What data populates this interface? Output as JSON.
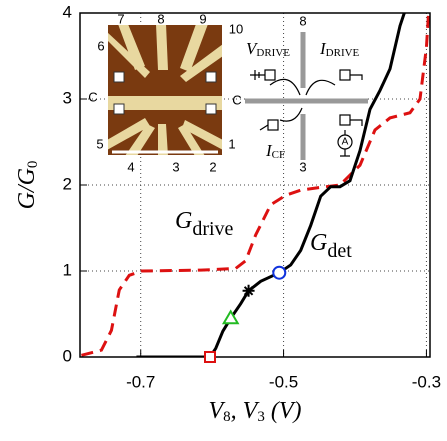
{
  "chart_data": {
    "type": "line",
    "ylabel": [
      "G/G",
      "0"
    ],
    "xlabel": [
      "V",
      "8",
      ", V",
      "3",
      " (V)"
    ],
    "xlim": [
      -0.785,
      -0.295
    ],
    "ylim": [
      0,
      4
    ],
    "xticks": [
      -0.7,
      -0.5,
      -0.3
    ],
    "yticks": [
      0,
      1,
      2,
      3,
      4
    ],
    "grid": true,
    "series": [
      {
        "name": [
          "G",
          "drive"
        ],
        "color": "#dd1111",
        "dash": true,
        "x": [
          -0.783,
          -0.755,
          -0.741,
          -0.73,
          -0.716,
          -0.699,
          -0.616,
          -0.567,
          -0.553,
          -0.539,
          -0.518,
          -0.497,
          -0.476,
          -0.451,
          -0.421,
          -0.393,
          -0.372,
          -0.351,
          -0.323,
          -0.309,
          -0.3,
          -0.297
        ],
        "values": [
          0.02,
          0.08,
          0.31,
          0.78,
          0.95,
          1.0,
          1.01,
          1.03,
          1.12,
          1.42,
          1.77,
          1.88,
          1.94,
          1.97,
          2.0,
          2.23,
          2.64,
          2.78,
          2.84,
          3.0,
          3.6,
          4.0
        ]
      },
      {
        "name": [
          "G",
          "det"
        ],
        "color": "#000000",
        "dash": false,
        "x": [
          -0.706,
          -0.603,
          -0.595,
          -0.585,
          -0.574,
          -0.56,
          -0.549,
          -0.532,
          -0.506,
          -0.49,
          -0.476,
          -0.462,
          -0.448,
          -0.434,
          -0.421,
          -0.407,
          -0.393,
          -0.379,
          -0.365,
          -0.351,
          -0.337,
          -0.331
        ],
        "values": [
          0,
          0.0,
          0.1,
          0.3,
          0.45,
          0.62,
          0.77,
          0.88,
          0.98,
          1.07,
          1.24,
          1.53,
          1.87,
          1.98,
          1.98,
          2.05,
          2.4,
          2.88,
          3.1,
          3.35,
          3.85,
          4.0
        ]
      }
    ],
    "markers": [
      {
        "x": -0.603,
        "y": 0.0,
        "shape": "square",
        "color": "#dd1111"
      },
      {
        "x": -0.574,
        "y": 0.45,
        "shape": "triangle",
        "color": "#22bb22"
      },
      {
        "x": -0.549,
        "y": 0.77,
        "shape": "star",
        "color": "#000000"
      },
      {
        "x": -0.506,
        "y": 0.98,
        "shape": "circle",
        "color": "#1133dd"
      }
    ],
    "inset_labels": [
      "7",
      "8",
      "9",
      "10",
      "6",
      "C",
      "5",
      "4",
      "3",
      "2",
      "1"
    ],
    "schematic": {
      "top": "8",
      "bottom": "3",
      "left": "C",
      "meter": "A",
      "v_drive": [
        "V",
        "DRIVE"
      ],
      "i_drive": [
        "I",
        "DRIVE"
      ],
      "i_cf": [
        "I",
        "CF"
      ]
    }
  }
}
